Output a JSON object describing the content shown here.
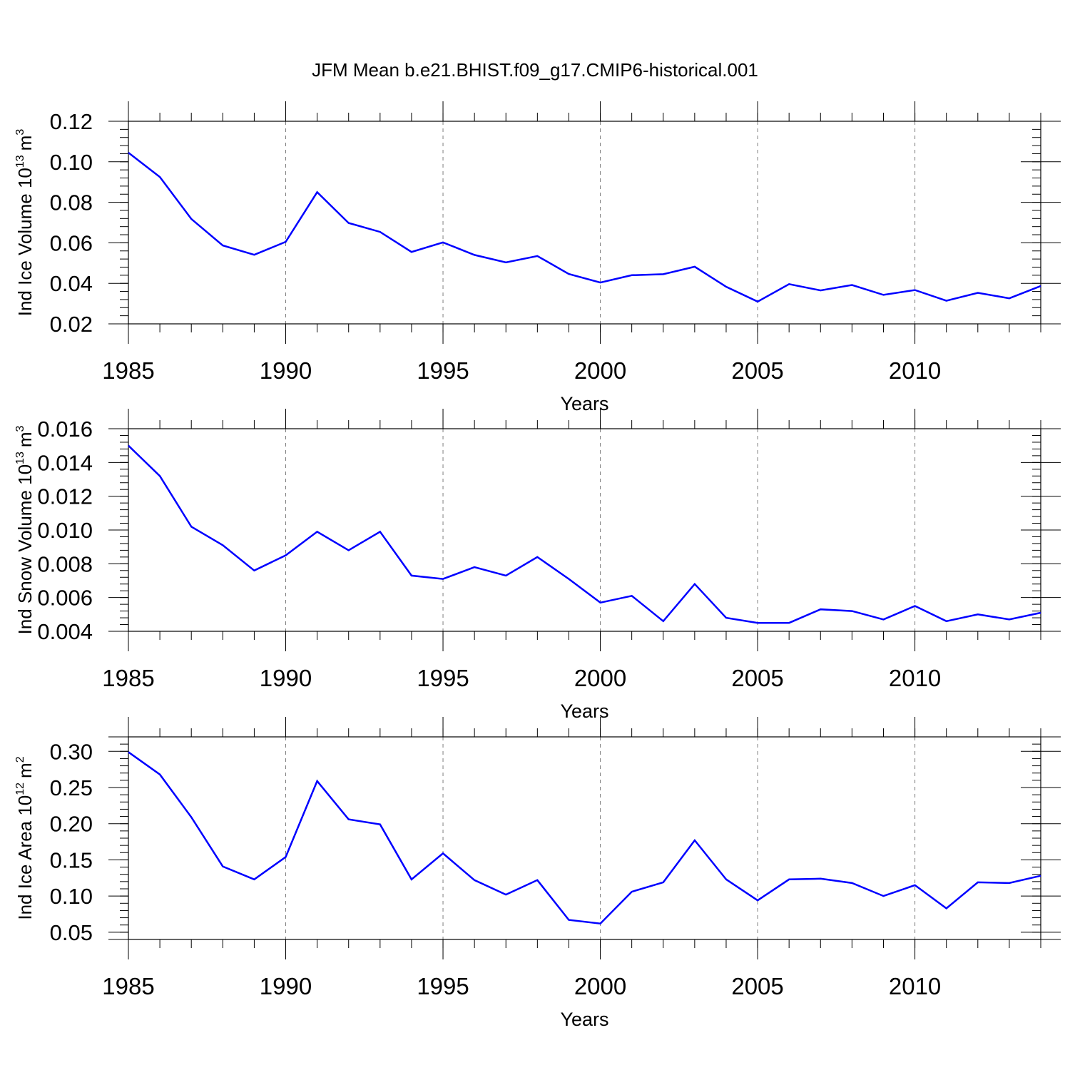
{
  "title": "JFM Mean b.e21.BHIST.f09_g17.CMIP6-historical.001",
  "line_color": "#0000ff",
  "chart_data": [
    {
      "type": "line",
      "xlabel": "Years",
      "ylabel_main": "Ind Ice Volume 10",
      "ylabel_exp": "13",
      "ylabel_unit": "m",
      "ylabel_unit_exp": "3",
      "xlim": [
        1985,
        2014
      ],
      "ylim": [
        0.02,
        0.12
      ],
      "yticks": [
        "0.02",
        "0.04",
        "0.06",
        "0.08",
        "0.10",
        "0.12"
      ],
      "xticks": [
        "1985",
        "1990",
        "1995",
        "2000",
        "2005",
        "2010"
      ],
      "x": [
        1985,
        1986,
        1987,
        1988,
        1989,
        1990,
        1991,
        1992,
        1993,
        1994,
        1995,
        1996,
        1997,
        1998,
        1999,
        2000,
        2001,
        2002,
        2003,
        2004,
        2005,
        2006,
        2007,
        2008,
        2009,
        2010,
        2011,
        2012,
        2013,
        2014
      ],
      "series": [
        {
          "name": "Ind Ice Volume",
          "values": [
            0.1045,
            0.0925,
            0.0718,
            0.0587,
            0.0541,
            0.0605,
            0.085,
            0.0698,
            0.0654,
            0.0555,
            0.0602,
            0.054,
            0.0503,
            0.0535,
            0.0446,
            0.0404,
            0.044,
            0.0445,
            0.0482,
            0.0383,
            0.031,
            0.0396,
            0.0365,
            0.0392,
            0.0343,
            0.0367,
            0.0314,
            0.0353,
            0.0326,
            0.0387
          ]
        }
      ]
    },
    {
      "type": "line",
      "xlabel": "Years",
      "ylabel_main": "Ind Snow Volume 10",
      "ylabel_exp": "13",
      "ylabel_unit": "m",
      "ylabel_unit_exp": "3",
      "xlim": [
        1985,
        2014
      ],
      "ylim": [
        0.004,
        0.016
      ],
      "yticks": [
        "0.004",
        "0.006",
        "0.008",
        "0.010",
        "0.012",
        "0.014",
        "0.016"
      ],
      "xticks": [
        "1985",
        "1990",
        "1995",
        "2000",
        "2005",
        "2010"
      ],
      "x": [
        1985,
        1986,
        1987,
        1988,
        1989,
        1990,
        1991,
        1992,
        1993,
        1994,
        1995,
        1996,
        1997,
        1998,
        1999,
        2000,
        2001,
        2002,
        2003,
        2004,
        2005,
        2006,
        2007,
        2008,
        2009,
        2010,
        2011,
        2012,
        2013,
        2014
      ],
      "series": [
        {
          "name": "Ind Snow Volume",
          "values": [
            0.015,
            0.0132,
            0.0102,
            0.0091,
            0.0076,
            0.0085,
            0.0099,
            0.0088,
            0.0099,
            0.0073,
            0.0071,
            0.0078,
            0.0073,
            0.0084,
            0.0071,
            0.0057,
            0.0061,
            0.0046,
            0.0068,
            0.0048,
            0.0045,
            0.0045,
            0.0053,
            0.0052,
            0.0047,
            0.0055,
            0.0046,
            0.005,
            0.0047,
            0.0051
          ]
        }
      ]
    },
    {
      "type": "line",
      "xlabel": "Years",
      "ylabel_main": "Ind Ice Area 10",
      "ylabel_exp": "12",
      "ylabel_unit": "m",
      "ylabel_unit_exp": "2",
      "xlim": [
        1985,
        2014
      ],
      "ylim": [
        0.04,
        0.32
      ],
      "yticks": [
        "0.05",
        "0.10",
        "0.15",
        "0.20",
        "0.25",
        "0.30"
      ],
      "xticks": [
        "1985",
        "1990",
        "1995",
        "2000",
        "2005",
        "2010"
      ],
      "x": [
        1985,
        1986,
        1987,
        1988,
        1989,
        1990,
        1991,
        1992,
        1993,
        1994,
        1995,
        1996,
        1997,
        1998,
        1999,
        2000,
        2001,
        2002,
        2003,
        2004,
        2005,
        2006,
        2007,
        2008,
        2009,
        2010,
        2011,
        2012,
        2013,
        2014
      ],
      "series": [
        {
          "name": "Ind Ice Area",
          "values": [
            0.299,
            0.268,
            0.209,
            0.141,
            0.123,
            0.154,
            0.259,
            0.206,
            0.199,
            0.123,
            0.159,
            0.122,
            0.102,
            0.122,
            0.067,
            0.062,
            0.106,
            0.119,
            0.177,
            0.123,
            0.094,
            0.123,
            0.124,
            0.118,
            0.1,
            0.115,
            0.083,
            0.119,
            0.118,
            0.128
          ]
        }
      ]
    }
  ]
}
